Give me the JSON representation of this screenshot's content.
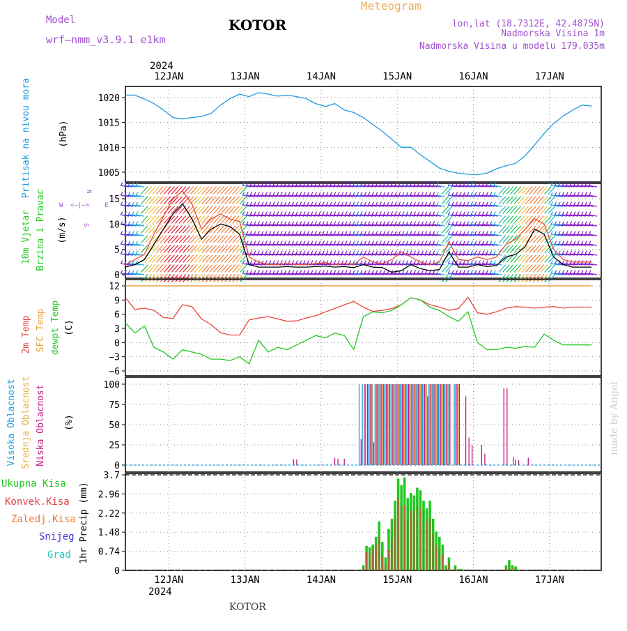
{
  "header": {
    "model_label": "Model",
    "model_name": "wrf—nmm_v3.9.1  e1km",
    "station": "KOTOR",
    "product": "Meteogram",
    "lonlat": "lon,lat (18.7312E, 42.4875N)",
    "elev": "Nadmorska Visina 1m",
    "model_elev": "Nadmorska Visina u modelu 179.035m",
    "watermark": "made by Angel",
    "footer_station": "KOTOR"
  },
  "colors": {
    "pressure": "#1e9be0",
    "wind_speed": "#000000",
    "wind_gust": "#e8503a",
    "temp_2m": "#e8453c",
    "temp_sfc": "#e8a040",
    "dewpoint": "#22c822",
    "cloud_high": "#1ea0e6",
    "cloud_mid": "#e8b040",
    "cloud_low": "#c01880",
    "precip_total": "#22c822",
    "precip_conv": "#e0403c",
    "precip_frozen": "#f07830",
    "snow": "#3c3cd8",
    "hail": "#28c8b8",
    "purple_text": "#a050d0",
    "gold_text": "#e8b060"
  },
  "time_axis": {
    "year": "2024",
    "days": [
      "12JAN",
      "13JAN",
      "14JAN",
      "15JAN",
      "16JAN",
      "17JAN"
    ]
  },
  "chart_data": [
    {
      "type": "line",
      "panel": "pressure",
      "ylabel_left": "Pritisak na nivou mora",
      "ylabel_unit": "(hPa)",
      "ylim": [
        1003,
        1022
      ],
      "ticks": [
        "1020",
        "1015",
        "1010",
        "1005"
      ],
      "grid": true,
      "x_hours": [
        0,
        3,
        6,
        9,
        12,
        15,
        18,
        21,
        24,
        27,
        30,
        33,
        36,
        39,
        42,
        45,
        48,
        51,
        54,
        57,
        60,
        63,
        66,
        69,
        72,
        75,
        78,
        81,
        84,
        87,
        90,
        93,
        96,
        99,
        102,
        105,
        108,
        111,
        114,
        117,
        120,
        123,
        126,
        129,
        132,
        135,
        138,
        141,
        144,
        147
      ],
      "series": [
        {
          "values": [
            1020.5,
            1020.5,
            1019.7,
            1018.8,
            1017.5,
            1016.0,
            1015.7,
            1016.0,
            1016.2,
            1016.8,
            1018.5,
            1019.8,
            1020.7,
            1020.2,
            1021.0,
            1020.7,
            1020.3,
            1020.5,
            1020.2,
            1019.8,
            1018.8,
            1018.2,
            1018.8,
            1017.5,
            1017.0,
            1016.0,
            1014.6,
            1013.2,
            1011.6,
            1010.0,
            1010.0,
            1008.5,
            1007.2,
            1005.8,
            1005.2,
            1004.8,
            1004.6,
            1004.5,
            1004.8,
            1005.7,
            1006.3,
            1006.8,
            1008.3,
            1010.5,
            1012.8,
            1014.8,
            1016.3,
            1017.5,
            1018.5,
            1018.3
          ]
        }
      ]
    },
    {
      "type": "line",
      "panel": "wind",
      "ylabel_left_1": "10m Vjetar",
      "ylabel_left_2": "Brzina i Pravac",
      "ylabel_unit": "(m/s)",
      "compass": [
        "N",
        "W",
        "<—|—>",
        "E",
        "S"
      ],
      "ylim": [
        -1,
        18.5
      ],
      "ticks": [
        "15",
        "10",
        "5",
        "0"
      ],
      "x_hours": [
        0,
        3,
        6,
        9,
        12,
        15,
        18,
        21,
        24,
        27,
        30,
        33,
        36,
        39,
        42,
        45,
        48,
        51,
        54,
        57,
        60,
        63,
        66,
        69,
        72,
        75,
        78,
        81,
        84,
        87,
        90,
        93,
        96,
        99,
        102,
        105,
        108,
        111,
        114,
        117,
        120,
        123,
        126,
        129,
        132,
        135,
        138,
        141,
        144,
        147
      ],
      "series": [
        {
          "name_key": "speed",
          "values": [
            1.5,
            2.0,
            3.0,
            6.0,
            9.0,
            12.0,
            14.0,
            11.0,
            7.0,
            9.0,
            10.0,
            9.5,
            8.0,
            2.0,
            1.5,
            1.5,
            1.5,
            1.6,
            1.5,
            1.5,
            1.6,
            1.7,
            1.5,
            1.6,
            1.4,
            2.0,
            1.5,
            1.4,
            0.5,
            0.8,
            2.0,
            1.2,
            0.8,
            1.0,
            4.5,
            1.5,
            1.5,
            2.0,
            1.6,
            1.8,
            3.5,
            4.0,
            5.5,
            9.0,
            8.0,
            3.5,
            2.0,
            1.5,
            1.5,
            1.5
          ]
        },
        {
          "name_key": "gust",
          "values": [
            2.0,
            3.0,
            4.0,
            8.0,
            11.5,
            15.0,
            16.5,
            14.0,
            9.0,
            11.0,
            12.0,
            11.0,
            10.5,
            3.5,
            2.5,
            2.0,
            2.0,
            2.2,
            2.0,
            2.0,
            2.2,
            2.4,
            2.0,
            2.2,
            2.0,
            3.5,
            2.5,
            2.2,
            3.0,
            4.5,
            3.5,
            2.5,
            2.0,
            2.5,
            6.5,
            3.0,
            2.8,
            3.5,
            3.0,
            3.5,
            6.0,
            7.0,
            9.0,
            11.0,
            10.0,
            5.0,
            3.0,
            2.5,
            2.5,
            2.5
          ]
        }
      ]
    },
    {
      "type": "line",
      "panel": "temperature",
      "ylabel_left_1": "2m Temp",
      "ylabel_left_2": "SFC Temp",
      "ylabel_left_3": "dewpt Temp",
      "ylabel_unit": "(C)",
      "ylim": [
        -6,
        12
      ],
      "ticks": [
        "12",
        "9",
        "6",
        "3",
        "0",
        "−3",
        "−6"
      ],
      "x_hours": [
        0,
        3,
        6,
        9,
        12,
        15,
        18,
        21,
        24,
        27,
        30,
        33,
        36,
        39,
        42,
        45,
        48,
        51,
        54,
        57,
        60,
        63,
        66,
        69,
        72,
        75,
        78,
        81,
        84,
        87,
        90,
        93,
        96,
        99,
        102,
        105,
        108,
        111,
        114,
        117,
        120,
        123,
        126,
        129,
        132,
        135,
        138,
        141,
        144,
        147
      ],
      "series": [
        {
          "name_key": "temp_2m",
          "values": [
            9.5,
            7.0,
            7.3,
            6.8,
            5.3,
            5.1,
            8.0,
            7.6,
            5.0,
            3.8,
            2.1,
            1.6,
            1.6,
            4.8,
            5.2,
            5.5,
            5.0,
            4.5,
            4.6,
            5.2,
            5.7,
            6.5,
            7.2,
            8.0,
            8.7,
            7.5,
            6.6,
            6.8,
            7.2,
            8.0,
            9.5,
            9.0,
            8.0,
            7.5,
            6.8,
            7.2,
            9.6,
            6.3,
            6.0,
            6.5,
            7.3,
            7.6,
            7.5,
            7.3,
            7.5,
            7.6,
            7.3,
            7.5,
            7.5,
            7.5
          ]
        },
        {
          "name_key": "temp_sfc",
          "values": [
            12,
            12,
            12,
            12,
            12,
            12,
            12,
            12,
            12,
            12,
            12,
            12,
            12,
            12,
            12,
            12,
            12,
            12,
            12,
            12,
            12,
            12,
            12,
            12,
            12,
            12,
            12,
            12,
            12,
            12,
            12,
            12,
            12,
            12,
            12,
            12,
            12,
            12,
            12,
            12,
            12,
            12,
            12,
            12,
            12,
            12,
            12,
            12,
            12,
            12
          ]
        },
        {
          "name_key": "dewpoint",
          "values": [
            4.2,
            2.0,
            3.5,
            -1.0,
            -2.0,
            -3.5,
            -1.5,
            -2.0,
            -2.5,
            -3.5,
            -3.5,
            -3.8,
            -3.0,
            -4.5,
            0.5,
            -2.0,
            -1.0,
            -1.5,
            -0.5,
            0.5,
            1.5,
            1.0,
            2.0,
            1.5,
            -1.5,
            5.5,
            6.5,
            6.3,
            6.8,
            8.0,
            9.5,
            9.0,
            7.5,
            6.8,
            5.5,
            4.5,
            6.5,
            0.0,
            -1.5,
            -1.5,
            -1.0,
            -1.2,
            -0.8,
            -1.0,
            1.8,
            0.5,
            -0.5,
            -0.5,
            -0.5,
            -0.5
          ]
        }
      ]
    },
    {
      "type": "bar",
      "panel": "clouds",
      "ylabel_left_1": "Visoka Oblacnost",
      "ylabel_left_2": "Srednja Oblacnost",
      "ylabel_left_3": "Niska Oblacnost",
      "ylabel_unit": "(%)",
      "ylim": [
        0,
        100
      ],
      "ticks": [
        "100",
        "75",
        "50",
        "25",
        "0"
      ],
      "x_hours": [
        74,
        75,
        76,
        77,
        78,
        79,
        80,
        81,
        82,
        83,
        84,
        85,
        86,
        87,
        88,
        89,
        90,
        91,
        92,
        93,
        94,
        95,
        96,
        97,
        98,
        99,
        100,
        101,
        102,
        104,
        105,
        107,
        108,
        109,
        112,
        113,
        119,
        120,
        122
      ],
      "series": [
        {
          "name_key": "high",
          "values": [
            100,
            100,
            100,
            100,
            100,
            100,
            100,
            100,
            100,
            100,
            100,
            100,
            100,
            100,
            100,
            100,
            100,
            100,
            100,
            100,
            100,
            100,
            100,
            100,
            100,
            100,
            100,
            100,
            100,
            100,
            100,
            0,
            0,
            0,
            0,
            0,
            0,
            0,
            0
          ]
        },
        {
          "name_key": "mid",
          "values": [
            0,
            0,
            0,
            100,
            100,
            100,
            100,
            100,
            100,
            100,
            100,
            100,
            100,
            100,
            100,
            100,
            100,
            100,
            100,
            100,
            100,
            100,
            100,
            100,
            100,
            100,
            100,
            100,
            100,
            100,
            100,
            0,
            0,
            0,
            0,
            0,
            0,
            0,
            0
          ]
        },
        {
          "name_key": "low",
          "values": [
            32,
            100,
            100,
            100,
            28,
            100,
            100,
            100,
            100,
            100,
            100,
            100,
            100,
            100,
            100,
            100,
            100,
            100,
            100,
            100,
            100,
            85,
            100,
            100,
            100,
            100,
            100,
            100,
            100,
            100,
            100,
            85,
            34,
            25,
            25,
            14,
            95,
            95,
            10
          ]
        }
      ],
      "sparse_low": [
        {
          "h": 53,
          "v": 7
        },
        {
          "h": 54,
          "v": 7
        },
        {
          "h": 66,
          "v": 9
        },
        {
          "h": 67,
          "v": 8
        },
        {
          "h": 69,
          "v": 8
        },
        {
          "h": 123,
          "v": 7
        },
        {
          "h": 124,
          "v": 6
        },
        {
          "h": 127,
          "v": 9
        }
      ]
    },
    {
      "type": "bar",
      "panel": "precip",
      "legend": [
        "Ukupna  Kisa",
        "Konvek.Kisa",
        "Zaledj.Kisa",
        "Snijeg",
        "Grad"
      ],
      "ylabel_unit": "1hr Precip (mm)",
      "ylim": [
        0,
        3.7
      ],
      "ticks": [
        "3.7",
        "2.96",
        "2.22",
        "1.48",
        "0.74",
        "0"
      ],
      "x_hours": [
        75,
        76,
        77,
        78,
        79,
        80,
        81,
        82,
        83,
        84,
        85,
        86,
        87,
        88,
        89,
        90,
        91,
        92,
        93,
        94,
        95,
        96,
        97,
        98,
        99,
        100,
        101,
        102,
        104,
        105,
        106,
        120,
        121,
        122,
        123
      ],
      "series": [
        {
          "name_key": "total",
          "values": [
            0.2,
            0.95,
            0.9,
            1.0,
            1.3,
            1.9,
            1.1,
            0.5,
            1.6,
            2.0,
            2.7,
            3.55,
            3.3,
            3.6,
            2.8,
            3.0,
            2.9,
            3.2,
            3.1,
            2.7,
            2.4,
            2.7,
            2.0,
            1.5,
            1.3,
            1.0,
            0.2,
            0.5,
            0.2,
            0.05,
            0.05,
            0.2,
            0.4,
            0.2,
            0.15
          ]
        },
        {
          "name_key": "convective",
          "values": [
            0.1,
            0.7,
            0.65,
            0.8,
            1.0,
            1.3,
            0.5,
            0.2,
            0.8,
            1.2,
            2.0,
            2.8,
            2.5,
            2.5,
            2.0,
            2.3,
            2.3,
            2.5,
            2.4,
            2.3,
            1.9,
            2.0,
            1.4,
            1.0,
            0.8,
            0.6,
            0.1,
            0.3,
            0.1,
            0.02,
            0.02,
            0.1,
            0.2,
            0.1,
            0.08
          ]
        }
      ]
    }
  ]
}
